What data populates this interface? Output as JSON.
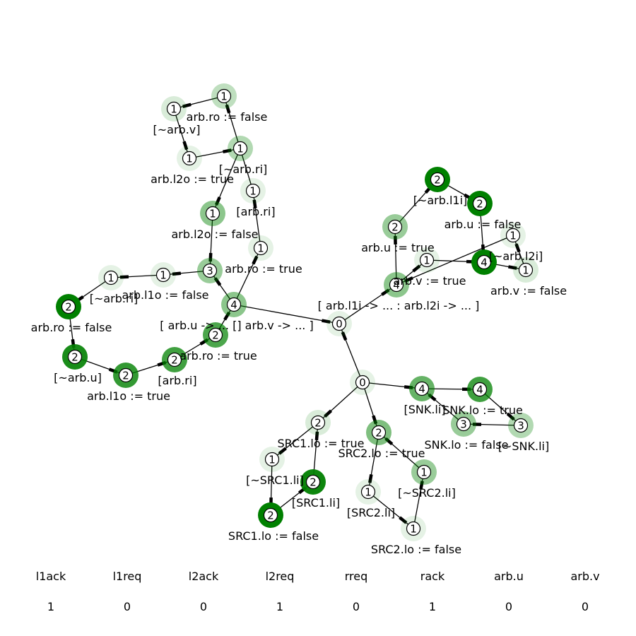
{
  "graph": {
    "nodes": [
      {
        "id": "n0",
        "count": "0",
        "label": "[ arb.l1i -> ... : arb.l2i -> ... ]",
        "weight": 0.1
      },
      {
        "id": "n1",
        "count": "0",
        "label": "",
        "weight": 0.1
      },
      {
        "id": "n2",
        "count": "4",
        "label": "[ arb.u -> ... [] arb.v -> ... ]",
        "weight": 0.45
      },
      {
        "id": "n3",
        "count": "3",
        "label": "",
        "weight": 0.4
      },
      {
        "id": "n4",
        "count": "1",
        "label": "arb.l1o := false",
        "weight": 0.1
      },
      {
        "id": "n5",
        "count": "1",
        "label": "[~arb.ri]",
        "weight": 0.1
      },
      {
        "id": "n6",
        "count": "2",
        "label": "arb.ro := false",
        "weight": 1.0
      },
      {
        "id": "n7",
        "count": "2",
        "label": "[~arb.u]",
        "weight": 0.9
      },
      {
        "id": "n8",
        "count": "2",
        "label": "arb.l1o := true",
        "weight": 0.8
      },
      {
        "id": "n9",
        "count": "2",
        "label": "[arb.ri]",
        "weight": 0.75
      },
      {
        "id": "n10",
        "count": "2",
        "label": "arb.ro := true",
        "weight": 0.7
      },
      {
        "id": "n11",
        "count": "1",
        "label": "arb.ro := true",
        "weight": 0.1
      },
      {
        "id": "n12",
        "count": "1",
        "label": "[arb.ri]",
        "weight": 0.1
      },
      {
        "id": "n13",
        "count": "1",
        "label": "arb.l2o := false",
        "weight": 0.45
      },
      {
        "id": "n14",
        "count": "1",
        "label": "arb.l2o := true",
        "weight": 0.1
      },
      {
        "id": "n15",
        "count": "1",
        "label": "[~arb.v]",
        "weight": 0.15
      },
      {
        "id": "n16",
        "count": "1",
        "label": "arb.ro := false",
        "weight": 0.25
      },
      {
        "id": "n17",
        "count": "1",
        "label": "[~arb.ri]",
        "weight": 0.3
      },
      {
        "id": "n18",
        "count": "4",
        "label": "",
        "weight": 0.45
      },
      {
        "id": "n19",
        "count": "2",
        "label": "arb.u := true",
        "weight": 0.4
      },
      {
        "id": "n20",
        "count": "2",
        "label": "[~arb.l1i]",
        "weight": 1.0
      },
      {
        "id": "n21",
        "count": "2",
        "label": "arb.u := false",
        "weight": 1.0
      },
      {
        "id": "n22",
        "count": "4",
        "label": "",
        "weight": 1.0
      },
      {
        "id": "n23",
        "count": "1",
        "label": "arb.v := true",
        "weight": 0.1
      },
      {
        "id": "n24",
        "count": "1",
        "label": "[~arb.l2i]",
        "weight": 0.1
      },
      {
        "id": "n25",
        "count": "1",
        "label": "arb.v := false",
        "weight": 0.15
      },
      {
        "id": "n26",
        "count": "2",
        "label": "SRC1.lo := true",
        "weight": 0.15
      },
      {
        "id": "n27",
        "count": "1",
        "label": "[~SRC1.li]",
        "weight": 0.1
      },
      {
        "id": "n28",
        "count": "2",
        "label": "[SRC1.li]",
        "weight": 0.95
      },
      {
        "id": "n29",
        "count": "2",
        "label": "SRC1.lo := false",
        "weight": 1.0
      },
      {
        "id": "n30",
        "count": "2",
        "label": "SRC2.lo := true",
        "weight": 0.5
      },
      {
        "id": "n31",
        "count": "1",
        "label": "[SRC2.li]",
        "weight": 0.1
      },
      {
        "id": "n32",
        "count": "1",
        "label": "[~SRC2.li]",
        "weight": 0.4
      },
      {
        "id": "n33",
        "count": "1",
        "label": "SRC2.lo := false",
        "weight": 0.1
      },
      {
        "id": "n34",
        "count": "4",
        "label": "[SNK.li]",
        "weight": 0.6
      },
      {
        "id": "n35",
        "count": "4",
        "label": "SNK.lo := true",
        "weight": 0.75
      },
      {
        "id": "n36",
        "count": "3",
        "label": "SNK.lo := false",
        "weight": 0.4
      },
      {
        "id": "n37",
        "count": "3",
        "label": "[~SNK.li]",
        "weight": 0.3
      }
    ],
    "edges": [
      [
        "n2",
        "n0"
      ],
      [
        "n0",
        "n18"
      ],
      [
        "n1",
        "n0"
      ],
      [
        "n2",
        "n3"
      ],
      [
        "n3",
        "n4"
      ],
      [
        "n4",
        "n5"
      ],
      [
        "n5",
        "n6"
      ],
      [
        "n6",
        "n7"
      ],
      [
        "n7",
        "n8"
      ],
      [
        "n8",
        "n9"
      ],
      [
        "n9",
        "n10"
      ],
      [
        "n10",
        "n2"
      ],
      [
        "n2",
        "n11"
      ],
      [
        "n11",
        "n12"
      ],
      [
        "n12",
        "n16"
      ],
      [
        "n16",
        "n15"
      ],
      [
        "n15",
        "n14"
      ],
      [
        "n14",
        "n17"
      ],
      [
        "n17",
        "n13"
      ],
      [
        "n13",
        "n3"
      ],
      [
        "n18",
        "n19"
      ],
      [
        "n19",
        "n20"
      ],
      [
        "n20",
        "n21"
      ],
      [
        "n21",
        "n22"
      ],
      [
        "n22",
        "n25"
      ],
      [
        "n25",
        "n24"
      ],
      [
        "n24",
        "n18"
      ],
      [
        "n18",
        "n23"
      ],
      [
        "n23",
        "n22"
      ],
      [
        "n1",
        "n26"
      ],
      [
        "n26",
        "n27"
      ],
      [
        "n27",
        "n29"
      ],
      [
        "n29",
        "n28"
      ],
      [
        "n28",
        "n26"
      ],
      [
        "n1",
        "n30"
      ],
      [
        "n30",
        "n31"
      ],
      [
        "n31",
        "n33"
      ],
      [
        "n33",
        "n32"
      ],
      [
        "n32",
        "n30"
      ],
      [
        "n1",
        "n34"
      ],
      [
        "n34",
        "n35"
      ],
      [
        "n35",
        "n37"
      ],
      [
        "n37",
        "n36"
      ],
      [
        "n36",
        "n34"
      ]
    ]
  },
  "variables": [
    {
      "name": "l1ack",
      "value": "1"
    },
    {
      "name": "l1req",
      "value": "0"
    },
    {
      "name": "l2ack",
      "value": "0"
    },
    {
      "name": "l2req",
      "value": "1"
    },
    {
      "name": "rreq",
      "value": "0"
    },
    {
      "name": "rack",
      "value": "1"
    },
    {
      "name": "arb.u",
      "value": "0"
    },
    {
      "name": "arb.v",
      "value": "0"
    }
  ],
  "colors": {
    "ring": "#008000",
    "edge": "#000000",
    "node_fill": "#ffffff"
  }
}
